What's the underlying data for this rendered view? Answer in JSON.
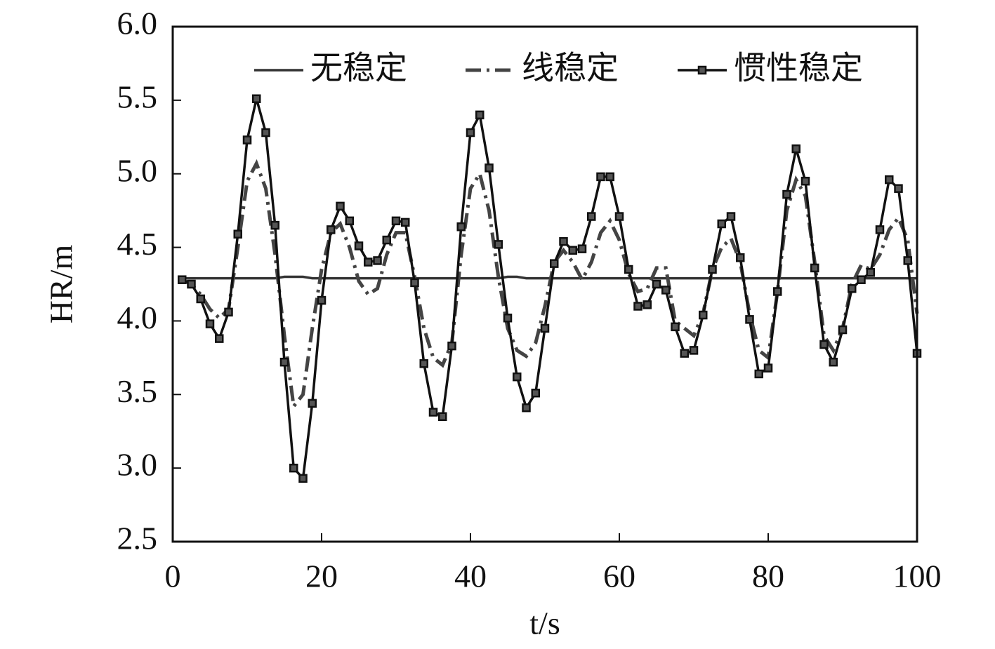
{
  "chart_data": {
    "type": "line",
    "xlabel": "t/s",
    "ylabel": "HR/m",
    "x": [
      1.25,
      2.5,
      3.75,
      5,
      6.25,
      7.5,
      8.75,
      10,
      11.25,
      12.5,
      13.75,
      15,
      16.25,
      17.5,
      18.75,
      20,
      21.25,
      22.5,
      23.75,
      25,
      26.25,
      27.5,
      28.75,
      30,
      31.25,
      32.5,
      33.75,
      35,
      36.25,
      37.5,
      38.75,
      40,
      41.25,
      42.5,
      43.75,
      45,
      46.25,
      47.5,
      48.75,
      50,
      51.25,
      52.5,
      53.75,
      55,
      56.25,
      57.5,
      58.75,
      60,
      61.25,
      62.5,
      63.75,
      65,
      66.25,
      67.5,
      68.75,
      70,
      71.25,
      72.5,
      73.75,
      75,
      76.25,
      77.5,
      78.75,
      80,
      81.25,
      82.5,
      83.75,
      85,
      86.25,
      87.5,
      88.75,
      90,
      91.25,
      92.5,
      93.75,
      95,
      96.25,
      97.5,
      98.75,
      100
    ],
    "series": [
      {
        "name": "无稳定",
        "color": "#333333",
        "style": "solid",
        "markers": false,
        "values": [
          4.29,
          4.29,
          4.29,
          4.29,
          4.29,
          4.29,
          4.29,
          4.29,
          4.29,
          4.29,
          4.29,
          4.3,
          4.3,
          4.3,
          4.29,
          4.29,
          4.29,
          4.29,
          4.29,
          4.29,
          4.29,
          4.29,
          4.29,
          4.29,
          4.29,
          4.29,
          4.29,
          4.29,
          4.29,
          4.29,
          4.29,
          4.29,
          4.29,
          4.29,
          4.29,
          4.3,
          4.3,
          4.29,
          4.29,
          4.29,
          4.29,
          4.29,
          4.29,
          4.29,
          4.29,
          4.29,
          4.29,
          4.29,
          4.29,
          4.29,
          4.29,
          4.29,
          4.29,
          4.29,
          4.29,
          4.29,
          4.29,
          4.29,
          4.29,
          4.29,
          4.29,
          4.29,
          4.29,
          4.29,
          4.29,
          4.29,
          4.29,
          4.29,
          4.29,
          4.29,
          4.29,
          4.29,
          4.29,
          4.29,
          4.29,
          4.29,
          4.29,
          4.29,
          4.29,
          4.29
        ]
      },
      {
        "name": "线稳定",
        "color": "#444444",
        "style": "dashdot",
        "markers": false,
        "values": [
          4.28,
          4.25,
          4.18,
          4.08,
          4.02,
          4.08,
          4.5,
          4.95,
          5.07,
          4.9,
          4.45,
          3.9,
          3.42,
          3.5,
          3.95,
          4.35,
          4.6,
          4.66,
          4.5,
          4.27,
          4.18,
          4.22,
          4.45,
          4.6,
          4.6,
          4.3,
          3.95,
          3.75,
          3.7,
          3.85,
          4.45,
          4.9,
          5.0,
          4.75,
          4.3,
          3.95,
          3.8,
          3.76,
          3.85,
          4.1,
          4.4,
          4.48,
          4.4,
          4.28,
          4.4,
          4.6,
          4.68,
          4.55,
          4.32,
          4.2,
          4.22,
          4.36,
          4.36,
          4.0,
          3.95,
          3.9,
          4.05,
          4.35,
          4.5,
          4.56,
          4.4,
          4.05,
          3.8,
          3.75,
          4.2,
          4.75,
          4.96,
          4.85,
          4.4,
          3.9,
          3.8,
          3.95,
          4.25,
          4.38,
          4.35,
          4.45,
          4.62,
          4.7,
          4.55,
          4.05
        ]
      },
      {
        "name": "惯性稳定",
        "color": "#111111",
        "style": "solid",
        "markers": true,
        "values": [
          4.28,
          4.25,
          4.15,
          3.98,
          3.88,
          4.06,
          4.59,
          5.23,
          5.51,
          5.28,
          4.65,
          3.72,
          3.0,
          2.93,
          3.44,
          4.14,
          4.62,
          4.78,
          4.68,
          4.51,
          4.4,
          4.41,
          4.55,
          4.68,
          4.67,
          4.26,
          3.71,
          3.38,
          3.35,
          3.83,
          4.64,
          5.28,
          5.4,
          5.04,
          4.52,
          4.02,
          3.62,
          3.41,
          3.51,
          3.95,
          4.39,
          4.54,
          4.48,
          4.49,
          4.71,
          4.98,
          4.98,
          4.71,
          4.35,
          4.1,
          4.11,
          4.25,
          4.21,
          3.96,
          3.78,
          3.8,
          4.04,
          4.35,
          4.66,
          4.71,
          4.43,
          4.01,
          3.64,
          3.68,
          4.2,
          4.86,
          5.17,
          4.95,
          4.36,
          3.84,
          3.72,
          3.94,
          4.22,
          4.28,
          4.33,
          4.62,
          4.96,
          4.9,
          4.41,
          3.78
        ]
      }
    ],
    "xlim": [
      0,
      100
    ],
    "xticks": [
      0,
      20,
      40,
      60,
      80,
      100
    ],
    "ylim": [
      2.5,
      6.0
    ],
    "yticks": [
      2.5,
      {
        "value": 3,
        "label": "3.0"
      },
      3.5,
      {
        "value": 4,
        "label": "4.0"
      },
      4.5,
      {
        "value": 5,
        "label": "5.0"
      },
      5.5,
      {
        "value": 6,
        "label": "6.0"
      }
    ]
  }
}
